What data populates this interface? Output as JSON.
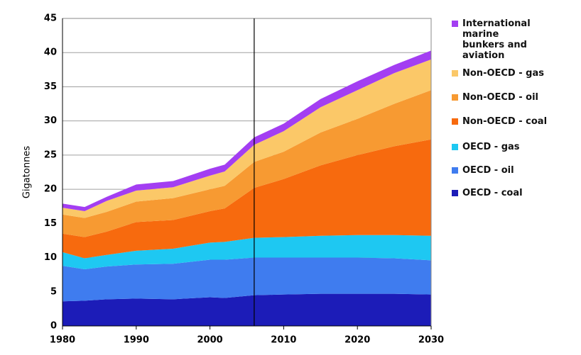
{
  "chart_data": {
    "type": "stacked_area",
    "y_label": "Gigatonnes",
    "x": [
      1980,
      1983,
      1986,
      1990,
      1995,
      2000,
      2002,
      2006,
      2010,
      2015,
      2020,
      2025,
      2030
    ],
    "series": [
      {
        "name": "OECD - coal",
        "color": "#1c1cb8",
        "values": [
          3.6,
          3.7,
          3.9,
          4.0,
          3.9,
          4.2,
          4.1,
          4.5,
          4.6,
          4.7,
          4.7,
          4.7,
          4.6
        ]
      },
      {
        "name": "OECD - oil",
        "color": "#3f7cef",
        "values": [
          5.2,
          4.6,
          4.8,
          5.0,
          5.2,
          5.5,
          5.6,
          5.5,
          5.4,
          5.3,
          5.3,
          5.2,
          5.0
        ]
      },
      {
        "name": "OECD - gas",
        "color": "#1ec8f2",
        "values": [
          2.0,
          1.6,
          1.7,
          2.0,
          2.2,
          2.5,
          2.6,
          2.9,
          3.0,
          3.2,
          3.3,
          3.4,
          3.6
        ]
      },
      {
        "name": "Non-OECD - coal",
        "color": "#f76a0e",
        "values": [
          2.7,
          3.1,
          3.4,
          4.2,
          4.2,
          4.6,
          4.9,
          7.3,
          8.5,
          10.3,
          11.7,
          13.0,
          14.1
        ]
      },
      {
        "name": "Non-OECD - oil",
        "color": "#f79a32",
        "values": [
          2.8,
          2.8,
          2.9,
          3.0,
          3.2,
          3.2,
          3.3,
          3.8,
          4.0,
          4.8,
          5.3,
          6.2,
          7.2
        ]
      },
      {
        "name": "Non-OECD - gas",
        "color": "#fbc868",
        "values": [
          1.0,
          1.0,
          1.6,
          1.6,
          1.6,
          2.0,
          2.1,
          2.5,
          3.0,
          3.7,
          4.2,
          4.5,
          4.5
        ]
      },
      {
        "name": "International marine bunkers and aviation",
        "color": "#a33ef2",
        "values": [
          0.6,
          0.6,
          0.6,
          0.9,
          0.9,
          1.0,
          1.0,
          1.1,
          1.1,
          1.2,
          1.3,
          1.2,
          1.3
        ]
      }
    ],
    "xlim": [
      1980,
      2030
    ],
    "xticks": [
      1980,
      1990,
      2000,
      2010,
      2020,
      2030
    ],
    "ylim": [
      0,
      45
    ],
    "yticks": [
      0,
      5,
      10,
      15,
      20,
      25,
      30,
      35,
      40,
      45
    ],
    "grid": true,
    "vertical_line_x": 2006,
    "legend": "right"
  }
}
